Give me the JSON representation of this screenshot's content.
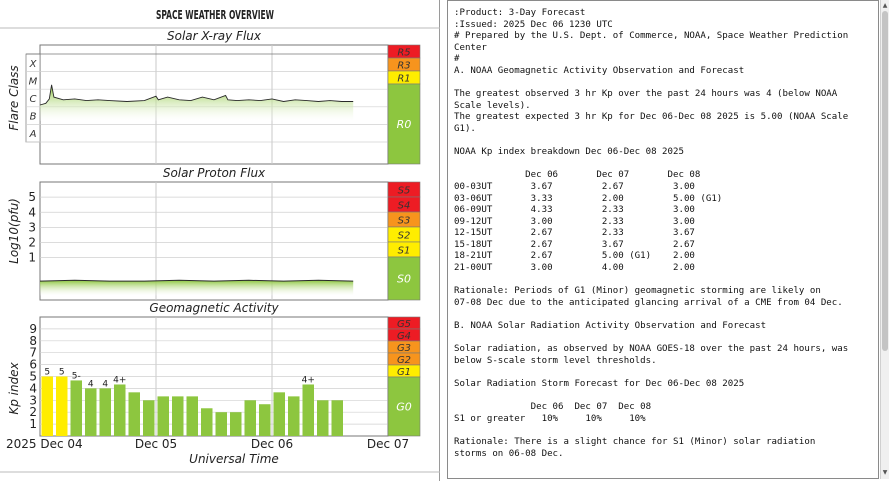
{
  "overview": {
    "title": "SPACE WEATHER OVERVIEW",
    "xlabel": "Universal Time",
    "date_labels": [
      "2025 Dec 04",
      "Dec 05",
      "Dec 06",
      "Dec 07"
    ]
  },
  "chart_data": [
    {
      "type": "area",
      "title": "Solar X-ray Flux",
      "ylabel": "Flare Class",
      "y_scale": "log",
      "class_labels": [
        "A",
        "B",
        "C",
        "M",
        "X"
      ],
      "x_range_days": [
        0,
        2.7
      ],
      "values_class_level": [
        [
          0.0,
          2.1
        ],
        [
          0.05,
          2.2
        ],
        [
          0.08,
          2.45
        ],
        [
          0.1,
          3.25
        ],
        [
          0.12,
          2.55
        ],
        [
          0.2,
          2.4
        ],
        [
          0.3,
          2.45
        ],
        [
          0.4,
          2.35
        ],
        [
          0.5,
          2.4
        ],
        [
          0.6,
          2.35
        ],
        [
          0.75,
          2.3
        ],
        [
          0.9,
          2.35
        ],
        [
          1.0,
          2.6
        ],
        [
          1.02,
          2.4
        ],
        [
          1.1,
          2.55
        ],
        [
          1.2,
          2.4
        ],
        [
          1.3,
          2.35
        ],
        [
          1.4,
          2.55
        ],
        [
          1.5,
          2.4
        ],
        [
          1.6,
          2.65
        ],
        [
          1.62,
          2.4
        ],
        [
          1.7,
          2.35
        ],
        [
          1.8,
          2.4
        ],
        [
          1.9,
          2.35
        ],
        [
          2.0,
          2.45
        ],
        [
          2.1,
          2.3
        ],
        [
          2.2,
          2.4
        ],
        [
          2.3,
          2.35
        ],
        [
          2.4,
          2.3
        ],
        [
          2.5,
          2.35
        ],
        [
          2.6,
          2.3
        ],
        [
          2.7,
          2.3
        ]
      ],
      "scale_labels": [
        "R5",
        "R3",
        "R1",
        "R0"
      ]
    },
    {
      "type": "area",
      "title": "Solar Proton Flux",
      "ylabel": "Log10(pfu)",
      "ylim": [
        -1.8,
        6
      ],
      "yticks": [
        1,
        2,
        3,
        4,
        5
      ],
      "x_range_days": [
        0,
        2.7
      ],
      "values_log10": [
        [
          0.0,
          -0.55
        ],
        [
          0.3,
          -0.5
        ],
        [
          0.6,
          -0.55
        ],
        [
          0.9,
          -0.55
        ],
        [
          1.2,
          -0.5
        ],
        [
          1.5,
          -0.55
        ],
        [
          1.8,
          -0.5
        ],
        [
          2.1,
          -0.55
        ],
        [
          2.4,
          -0.5
        ],
        [
          2.7,
          -0.55
        ]
      ],
      "scale_labels": [
        "S5",
        "S4",
        "S3",
        "S2",
        "S1",
        "S0"
      ]
    },
    {
      "type": "bar",
      "title": "Geomagnetic Activity",
      "ylabel": "Kp index",
      "ylim": [
        0,
        10
      ],
      "yticks": [
        1,
        2,
        3,
        4,
        5,
        6,
        7,
        8,
        9
      ],
      "bar_width_days": 0.125,
      "x_start_days": 0,
      "values": [
        5,
        5,
        4.67,
        4,
        4,
        4.33,
        3.67,
        3,
        3.33,
        3.33,
        3.33,
        2.33,
        2,
        2,
        3,
        2.67,
        3.67,
        3.33,
        4.33,
        3,
        3
      ],
      "bar_labels": [
        "5",
        "5",
        "5-",
        "4",
        "4",
        "4+",
        "",
        "",
        "",
        "",
        "",
        "",
        "",
        "",
        "",
        "",
        "",
        "",
        "4+",
        "",
        ""
      ],
      "scale_labels": [
        "G5",
        "G4",
        "G3",
        "G2",
        "G1",
        "G0"
      ]
    }
  ],
  "forecast": {
    "lines": [
      ":Product: 3-Day Forecast",
      ":Issued: 2025 Dec 06 1230 UTC",
      "# Prepared by the U.S. Dept. of Commerce, NOAA, Space Weather Prediction",
      "Center",
      "#",
      "A. NOAA Geomagnetic Activity Observation and Forecast",
      "",
      "The greatest observed 3 hr Kp over the past 24 hours was 4 (below NOAA",
      "Scale levels).",
      "The greatest expected 3 hr Kp for Dec 06-Dec 08 2025 is 5.00 (NOAA Scale",
      "G1).",
      "",
      "NOAA Kp index breakdown Dec 06-Dec 08 2025",
      "",
      "             Dec 06       Dec 07       Dec 08",
      "00-03UT       3.67         2.67         3.00",
      "03-06UT       3.33         2.00         5.00 (G1)",
      "06-09UT       4.33         2.33         3.00",
      "09-12UT       3.00         2.33         3.00",
      "12-15UT       2.67         2.33         3.67",
      "15-18UT       2.67         3.67         2.67",
      "18-21UT       2.67         5.00 (G1)    2.00",
      "21-00UT       3.00         4.00         2.00",
      "",
      "Rationale: Periods of G1 (Minor) geomagnetic storming are likely on",
      "07-08 Dec due to the anticipated glancing arrival of a CME from 04 Dec.",
      "",
      "B. NOAA Solar Radiation Activity Observation and Forecast",
      "",
      "Solar radiation, as observed by NOAA GOES-18 over the past 24 hours, was",
      "below S-scale storm level thresholds.",
      "",
      "Solar Radiation Storm Forecast for Dec 06-Dec 08 2025",
      "",
      "              Dec 06  Dec 07  Dec 08",
      "S1 or greater   10%     10%     10%",
      "",
      "Rationale: There is a slight chance for S1 (Minor) solar radiation",
      "storms on 06-08 Dec."
    ]
  },
  "colors": {
    "green_fill": "#8dc63f",
    "green_light": "#d9ecc0",
    "yellow": "#ffed00",
    "orange": "#f7941d",
    "red": "#ed1c24",
    "scale_green": "#8dc63f"
  }
}
